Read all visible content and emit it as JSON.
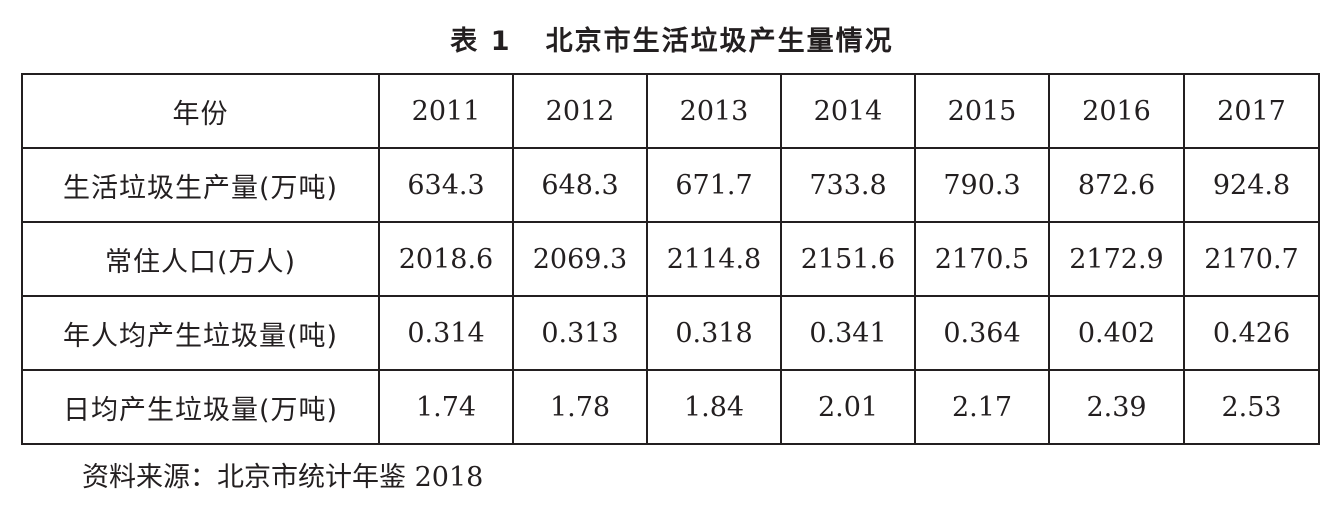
{
  "title": "表 1   北京市生活垃圾产生量情况",
  "table": {
    "header": {
      "label": "年份",
      "years": [
        "2011",
        "2012",
        "2013",
        "2014",
        "2015",
        "2016",
        "2017"
      ]
    },
    "rows": [
      {
        "label": "生活垃圾生产量(万吨)",
        "values": [
          "634.3",
          "648.3",
          "671.7",
          "733.8",
          "790.3",
          "872.6",
          "924.8"
        ]
      },
      {
        "label": "常住人口(万人)",
        "values": [
          "2018.6",
          "2069.3",
          "2114.8",
          "2151.6",
          "2170.5",
          "2172.9",
          "2170.7"
        ]
      },
      {
        "label": "年人均产生垃圾量(吨)",
        "values": [
          "0.314",
          "0.313",
          "0.318",
          "0.341",
          "0.364",
          "0.402",
          "0.426"
        ]
      },
      {
        "label": "日均产生垃圾量(万吨)",
        "values": [
          "1.74",
          "1.78",
          "1.84",
          "2.01",
          "2.17",
          "2.39",
          "2.53"
        ]
      }
    ]
  },
  "source": "资料来源：北京市统计年鉴 2018"
}
